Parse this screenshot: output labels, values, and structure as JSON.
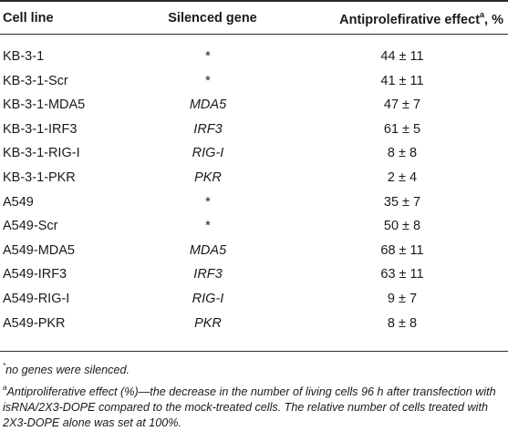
{
  "header": {
    "col1": "Cell line",
    "col2": "Silenced gene",
    "col3": "Antiprolefirative effect",
    "col3_sup": "a",
    "col3_suffix": ", %"
  },
  "rows": [
    {
      "cell_line": "KB-3-1",
      "gene": "*",
      "effect": "44 ± 11"
    },
    {
      "cell_line": "KB-3-1-Scr",
      "gene": "*",
      "effect": "41 ± 11"
    },
    {
      "cell_line": "KB-3-1-MDA5",
      "gene": "MDA5",
      "effect": "47 ± 7"
    },
    {
      "cell_line": "KB-3-1-IRF3",
      "gene": "IRF3",
      "effect": "61 ± 5"
    },
    {
      "cell_line": "KB-3-1-RIG-I",
      "gene": "RIG-I",
      "effect": "8 ± 8"
    },
    {
      "cell_line": "KB-3-1-PKR",
      "gene": "PKR",
      "effect": "2 ± 4"
    },
    {
      "cell_line": "A549",
      "gene": "*",
      "effect": "35 ± 7"
    },
    {
      "cell_line": "A549-Scr",
      "gene": "*",
      "effect": "50 ± 8"
    },
    {
      "cell_line": "A549-MDA5",
      "gene": "MDA5",
      "effect": "68 ± 11"
    },
    {
      "cell_line": "A549-IRF3",
      "gene": "IRF3",
      "effect": "63 ± 11"
    },
    {
      "cell_line": "A549-RIG-I",
      "gene": "RIG-I",
      "effect": "9 ± 7"
    },
    {
      "cell_line": "A549-PKR",
      "gene": "PKR",
      "effect": "8 ± 8"
    }
  ],
  "footnotes": {
    "fn1_mark": "*",
    "fn1_text": "no genes were silenced.",
    "fn2_mark": "a",
    "fn2_text": "Antiproliferative effect (%)—the decrease in the number of living cells 96 h after transfection with isRNA/2X3-DOPE compared to the mock-treated cells. The relative number of cells treated with 2X3-DOPE alone was set at 100%."
  }
}
